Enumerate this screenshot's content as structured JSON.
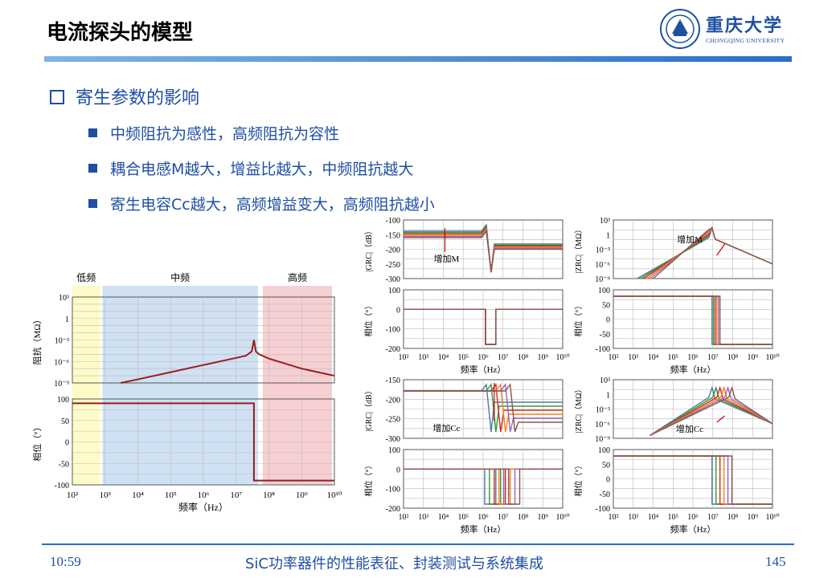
{
  "header": {
    "title": "电流探头的模型"
  },
  "logo": {
    "name_cn": "重庆大学",
    "name_en": "CHONGQING UNIVERSITY"
  },
  "section": {
    "heading": "寄生参数的影响"
  },
  "bullets": [
    "中频阻抗为感性，高频阻抗为容性",
    "耦合电感M越大，增益比越大，中频阻抗越大",
    "寄生电容Cc越大，高频增益变大，高频阻抗越小"
  ],
  "footer": {
    "time": "10:59",
    "center": "SiC功率器件的性能表征、封装测试与系统集成",
    "page": "145"
  },
  "colors": {
    "accent": "#1f4ea3",
    "band_low": "#fffbc8",
    "band_mid": "#cfe1f3",
    "band_high": "#f6cfd3",
    "curve": "#9b1c1c"
  },
  "chart_data": [
    {
      "type": "line",
      "id": "left-impedance-phase",
      "bands": [
        "低频",
        "中频",
        "高频"
      ],
      "xlabel": "频率（Hz）",
      "x_scale": "log",
      "xlim": [
        100,
        10000000000
      ],
      "x_ticks": [
        "10²",
        "10³",
        "10⁴",
        "10⁵",
        "10⁶",
        "10⁷",
        "10⁸",
        "10⁹",
        "10¹⁰"
      ],
      "top": {
        "ylabel": "阻抗（MΩ）",
        "y_ticks": [
          "10³",
          "1",
          "10⁻³",
          "10⁻⁶",
          "10⁻⁹"
        ],
        "ylim_log10": [
          -9,
          3
        ]
      },
      "bottom": {
        "ylabel": "相位（°）",
        "y_ticks": [
          "100",
          "50",
          "0",
          "-50",
          "-100"
        ],
        "ylim": [
          -100,
          100
        ]
      },
      "series": [
        {
          "panel": "top",
          "x": [
            3000,
            10000,
            100000,
            1000000,
            10000000,
            20000000,
            30000000,
            35000000,
            40000000,
            50000000,
            100000000,
            1000000000,
            10000000000
          ],
          "y_log10": [
            -9,
            -8.5,
            -7.5,
            -6.5,
            -5.5,
            -5.2,
            -4.6,
            -3,
            -4.6,
            -5.0,
            -5.6,
            -7.0,
            -8.0
          ]
        },
        {
          "panel": "bottom",
          "x": [
            100,
            35000000,
            35000000,
            10000000000
          ],
          "y": [
            90,
            90,
            -90,
            -90
          ]
        }
      ]
    },
    {
      "type": "line",
      "id": "gain-vs-M",
      "ylabel": "|GRC|（dB）",
      "annotation": "增加M",
      "xlabel": "频率（Hz）",
      "x_ticks": [
        "10²",
        "10³",
        "10⁴",
        "10⁵",
        "10⁶",
        "10⁷",
        "10⁸",
        "10⁹",
        "10¹⁰"
      ],
      "y_ticks": [
        "-100",
        "-150",
        "-200",
        "-250",
        "-300"
      ],
      "ylim": [
        -300,
        -100
      ],
      "phase_y_ticks": [
        "100",
        "0",
        "-100",
        "-200"
      ],
      "phase_ylim": [
        -200,
        100
      ]
    },
    {
      "type": "line",
      "id": "impedance-vs-M",
      "ylabel": "|ZRC|（MΩ）",
      "annotation": "增加M",
      "xlabel": "频率（Hz）",
      "y_ticks": [
        "10³",
        "1",
        "10⁻³",
        "10⁻⁶",
        "10⁻⁹"
      ],
      "phase_y_ticks": [
        "100",
        "50",
        "0",
        "-50",
        "-100"
      ]
    },
    {
      "type": "line",
      "id": "gain-vs-Cc",
      "ylabel": "|GRC|（dB）",
      "annotation": "增加Cc",
      "xlabel": "频率（Hz）",
      "y_ticks": [
        "-150",
        "-200",
        "-250",
        "-300"
      ],
      "phase_y_ticks": [
        "100",
        "0",
        "-100",
        "-200"
      ]
    },
    {
      "type": "line",
      "id": "impedance-vs-Cc",
      "ylabel": "|ZRC|（MΩ）",
      "annotation": "增加Cc",
      "xlabel": "频率（Hz）",
      "y_ticks": [
        "10³",
        "1",
        "10⁻³",
        "10⁻⁶",
        "10⁻⁹"
      ],
      "phase_y_ticks": [
        "100",
        "50",
        "0",
        "-50",
        "-100"
      ]
    }
  ]
}
